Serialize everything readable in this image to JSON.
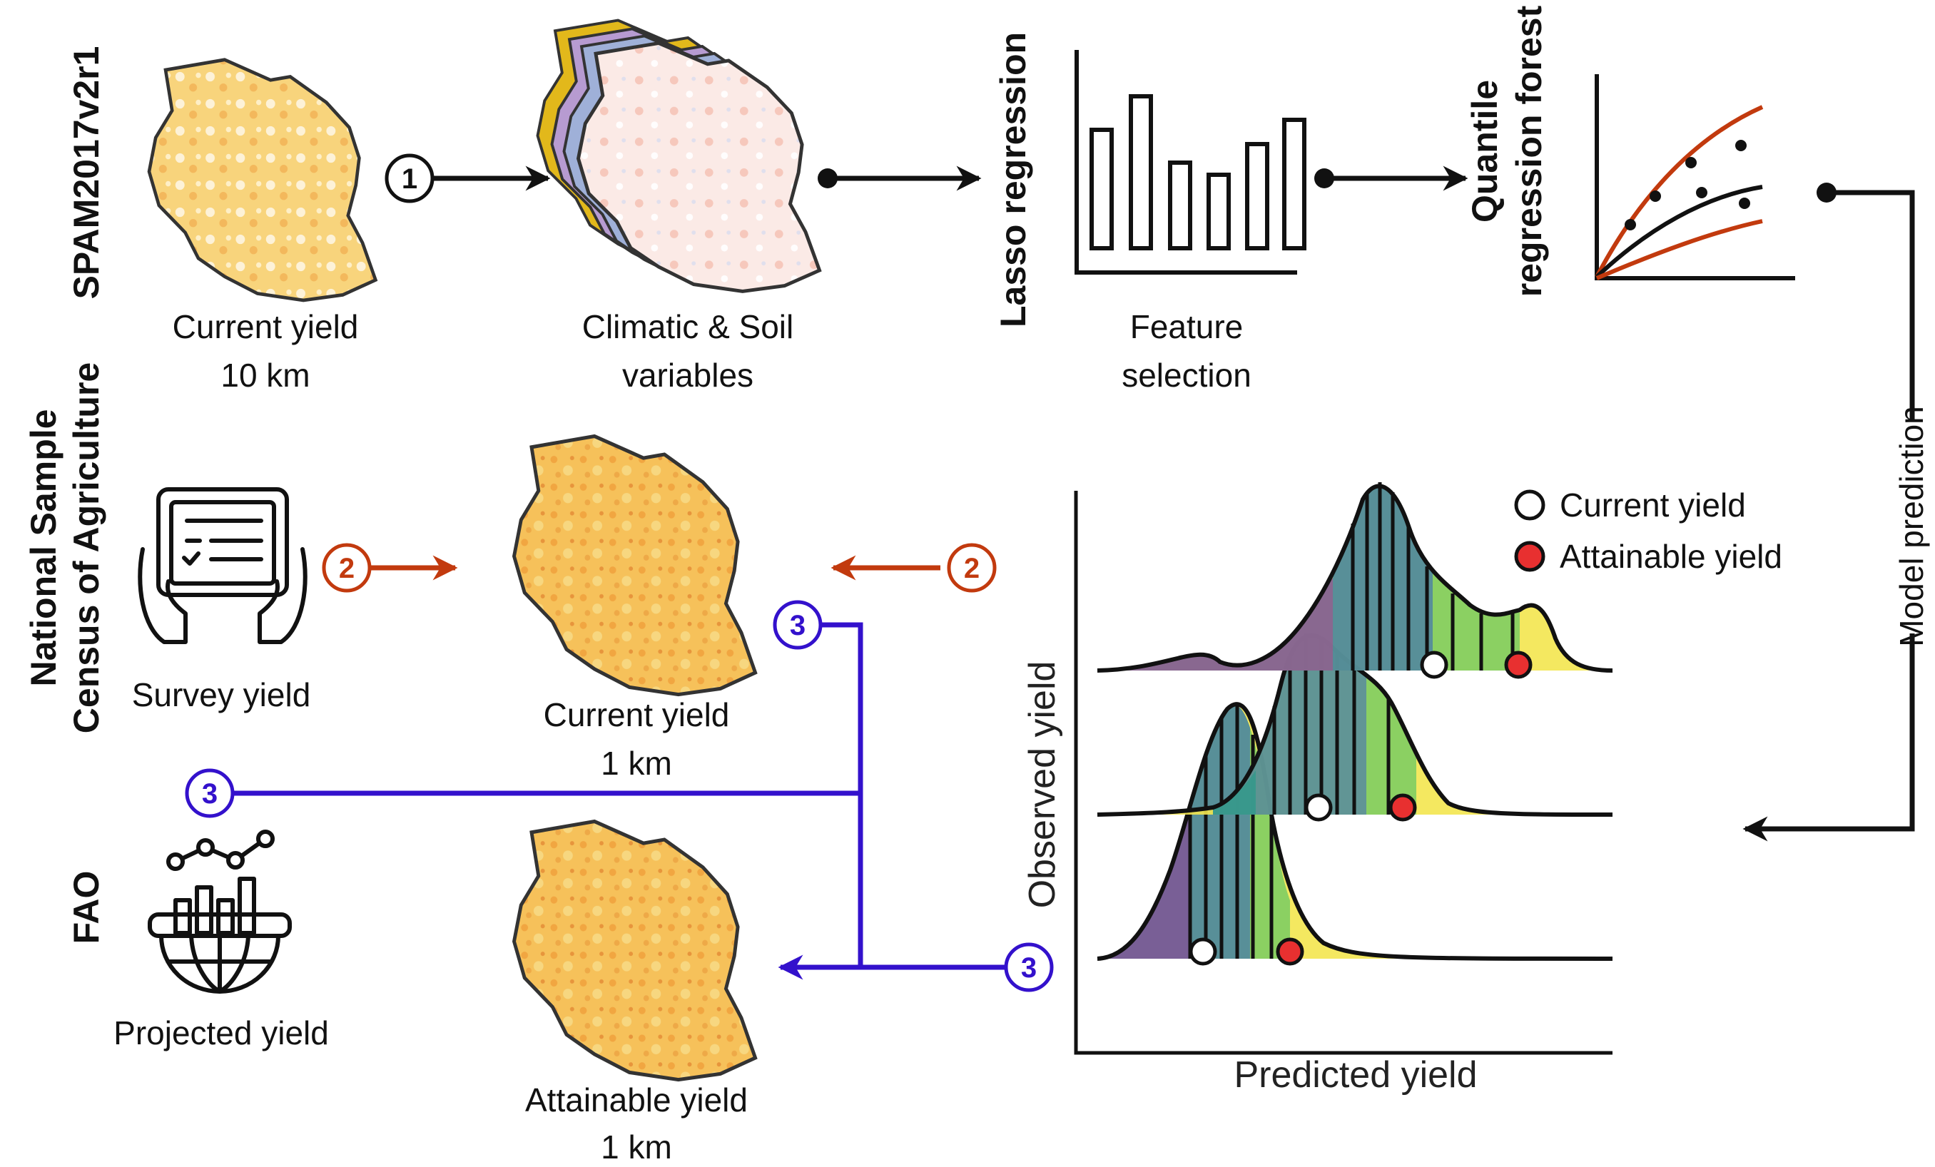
{
  "colors": {
    "black": "#111111",
    "orange": "#c23a0e",
    "blue": "#3311cc",
    "map_fill": "#f6c15a",
    "map_spot": "#ec8f2b",
    "density_purple": "#7d5a96",
    "density_blue": "#3c7fa2",
    "density_teal": "#2e9a8a",
    "density_green": "#7fcd63",
    "density_yellow": "#f3e64f",
    "attainable_marker": "#e83030"
  },
  "row_labels": {
    "spam": "SPAM2017v2r1",
    "census_line1": "National Sample",
    "census_line2": "Census of Agriculture",
    "fao": "FAO"
  },
  "captions": {
    "current_10km": [
      "Current yield",
      "10 km"
    ],
    "climatic_soil": [
      "Climatic & Soil",
      "variables"
    ],
    "feature_selection": [
      "Feature",
      "selection"
    ],
    "survey_yield": "Survey yield",
    "current_1km": [
      "Current yield",
      "1 km"
    ],
    "projected_yield": "Projected yield",
    "attainable_1km": [
      "Attainable yield",
      "1 km"
    ]
  },
  "method_labels": {
    "lasso": "Lasso regression",
    "qrf_line1": "Quantile",
    "qrf_line2": "regression forest",
    "model_prediction": "Model prediction"
  },
  "step_badges": {
    "one": "1",
    "two": "2",
    "three": "3"
  },
  "icons": [
    "survey-tablet-icon",
    "globe-chart-icon",
    "tanzania-map-icon"
  ],
  "ridge_plot": {
    "xlabel": "Predicted yield",
    "ylabel": "Observed yield",
    "legend_current": "Current yield",
    "legend_attainable": "Attainable yield"
  }
}
